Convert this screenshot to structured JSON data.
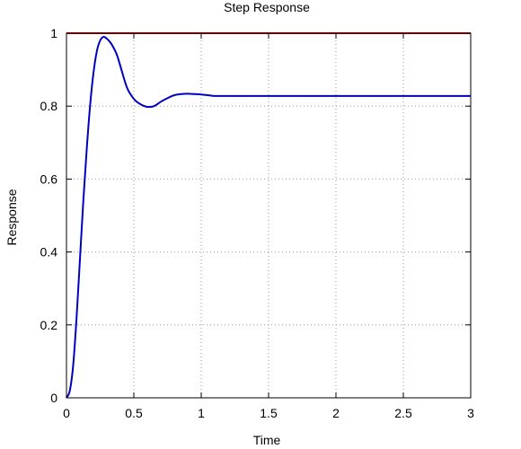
{
  "chart_data": {
    "type": "line",
    "title": "Step Response",
    "xlabel": "Time",
    "ylabel": "Response",
    "xlim": [
      0,
      3
    ],
    "ylim": [
      0,
      1
    ],
    "xticks": [
      0,
      0.5,
      1,
      1.5,
      2,
      2.5,
      3
    ],
    "xtick_labels": [
      "0",
      "0.5",
      "1",
      "1.5",
      "2",
      "2.5",
      "3"
    ],
    "yticks": [
      0,
      0.2,
      0.4,
      0.6,
      0.8,
      1
    ],
    "ytick_labels": [
      "0",
      "0.2",
      "0.4",
      "0.6",
      "0.8",
      "1"
    ],
    "grid": true,
    "grid_style": "dotted",
    "series": [
      {
        "color": "#0000c0",
        "x": [
          0,
          0.025,
          0.05,
          0.075,
          0.1,
          0.125,
          0.15,
          0.175,
          0.2,
          0.225,
          0.25,
          0.275,
          0.3,
          0.325,
          0.35,
          0.375,
          0.4,
          0.45,
          0.5,
          0.55,
          0.6,
          0.65,
          0.7,
          0.75,
          0.8,
          0.85,
          0.9,
          0.95,
          1.0,
          1.05,
          1.1,
          1.15,
          1.2,
          1.5,
          2.0,
          2.5,
          3.0
        ],
        "y": [
          0,
          0.02,
          0.09,
          0.22,
          0.38,
          0.54,
          0.68,
          0.8,
          0.89,
          0.95,
          0.98,
          0.99,
          0.985,
          0.975,
          0.96,
          0.94,
          0.91,
          0.85,
          0.82,
          0.805,
          0.798,
          0.8,
          0.812,
          0.822,
          0.83,
          0.833,
          0.834,
          0.833,
          0.832,
          0.83,
          0.828,
          0.828,
          0.828,
          0.828,
          0.828,
          0.828,
          0.828
        ]
      },
      {
        "color": "#c00000",
        "x": [
          0,
          3
        ],
        "y": [
          1,
          1
        ]
      }
    ]
  }
}
